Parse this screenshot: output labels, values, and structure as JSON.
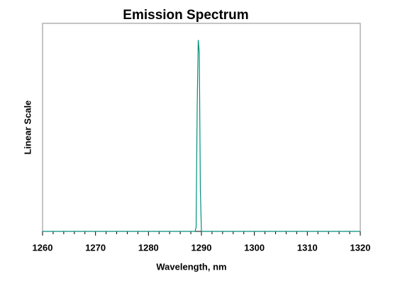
{
  "chart_data": {
    "type": "line",
    "title": "Emission Spectrum",
    "x_label": "Wavelength, nm",
    "y_label": "Linear Scale",
    "series": [
      {
        "color": "#00917a",
        "x": [
          1260,
          1288.8,
          1289.0,
          1289.2,
          1289.4,
          1289.6,
          1289.8,
          1290.0,
          1320
        ],
        "values": [
          0,
          0,
          0.02,
          0.6,
          0.92,
          0.86,
          0.2,
          0,
          0
        ]
      }
    ],
    "xlim": [
      1260,
      1320
    ],
    "xticks": [
      1260,
      1270,
      1280,
      1290,
      1300,
      1310,
      1320
    ],
    "ylim": [
      0,
      1
    ],
    "grid": false
  }
}
